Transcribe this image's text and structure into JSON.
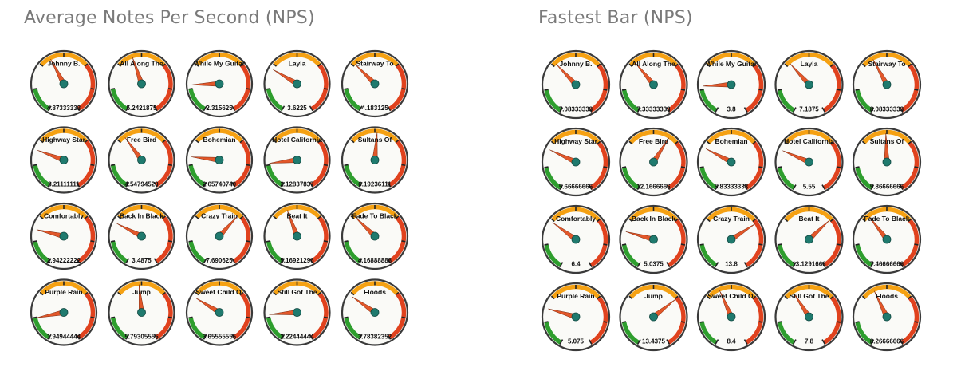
{
  "colors": {
    "green": "#2e9e2e",
    "orange": "#f5a113",
    "red": "#e0421e",
    "needle": "#e2572a",
    "hub": "#1f7a6e",
    "face": "#fafaf7",
    "rim": "#3a3a3a"
  },
  "panels": [
    {
      "title": "Average Notes Per Second (NPS)",
      "gauges": [
        {
          "label": "Johnny B.",
          "value": "4.87333333"
        },
        {
          "label": "All Along The",
          "value": "5.2421875"
        },
        {
          "label": "While My Guitar",
          "value": "2.315625"
        },
        {
          "label": "Layla",
          "value": "3.6225"
        },
        {
          "label": "Stairway To",
          "value": "4.183125"
        },
        {
          "label": "Highway Star",
          "value": "3.21111111"
        },
        {
          "label": "Free Bird",
          "value": "4.54794520"
        },
        {
          "label": "Bohemian",
          "value": "2.65740740"
        },
        {
          "label": "Hotel California",
          "value": "2.12837837"
        },
        {
          "label": "Sultans Of",
          "value": "6.19236111"
        },
        {
          "label": "Comfortably",
          "value": "2.94222222"
        },
        {
          "label": "Back In Black",
          "value": "3.4875"
        },
        {
          "label": "Crazy Train",
          "value": "7.690625"
        },
        {
          "label": "Beat It",
          "value": "5.16921296"
        },
        {
          "label": "Fade To Black",
          "value": "4.16888888"
        },
        {
          "label": "Purple Rain",
          "value": "1.94944444"
        },
        {
          "label": "Jump",
          "value": "5.79305555"
        },
        {
          "label": "Sweet Child O'",
          "value": "3.65555555"
        },
        {
          "label": "Still Got The",
          "value": "2.22444444"
        },
        {
          "label": "Floods",
          "value": "3.78382352"
        }
      ]
    },
    {
      "title": "Fastest Bar (NPS)",
      "gauges": [
        {
          "label": "Johnny B.",
          "value": "7.08333333"
        },
        {
          "label": "All Along The",
          "value": "7.33333333"
        },
        {
          "label": "While My Guitar",
          "value": "3.8"
        },
        {
          "label": "Layla",
          "value": "7.1875"
        },
        {
          "label": "Stairway To",
          "value": "8.08333333"
        },
        {
          "label": "Highway Star",
          "value": "5.66666666"
        },
        {
          "label": "Free Bird",
          "value": "12.1666666"
        },
        {
          "label": "Bohemian",
          "value": "5.83333333"
        },
        {
          "label": "Hotel California",
          "value": "5.55"
        },
        {
          "label": "Sultans Of",
          "value": "9.86666666"
        },
        {
          "label": "Comfortably",
          "value": "6.4"
        },
        {
          "label": "Back In Black",
          "value": "5.0375"
        },
        {
          "label": "Crazy Train",
          "value": "13.8"
        },
        {
          "label": "Beat It",
          "value": "13.1291666"
        },
        {
          "label": "Fade To Black",
          "value": "7.46666666"
        },
        {
          "label": "Purple Rain",
          "value": "5.075"
        },
        {
          "label": "Jump",
          "value": "13.4375"
        },
        {
          "label": "Sweet Child O'",
          "value": "8.4"
        },
        {
          "label": "Still Got The",
          "value": "7.8"
        },
        {
          "label": "Floods",
          "value": "8.26666666"
        }
      ]
    }
  ],
  "chart_data": [
    {
      "type": "gauge",
      "title": "Average Notes Per Second (NPS)",
      "gauge_min": 0,
      "gauge_max": 12,
      "bands": [
        {
          "color": "green",
          "from": 0,
          "to": 2
        },
        {
          "color": "orange",
          "from": 4,
          "to": 8
        },
        {
          "color": "red",
          "from": 8,
          "to": 12
        }
      ],
      "categories": [
        "Johnny B.",
        "All Along The",
        "While My Guitar",
        "Layla",
        "Stairway To",
        "Highway Star",
        "Free Bird",
        "Bohemian",
        "Hotel California",
        "Sultans Of",
        "Comfortably",
        "Back In Black",
        "Crazy Train",
        "Beat It",
        "Fade To Black",
        "Purple Rain",
        "Jump",
        "Sweet Child O'",
        "Still Got The",
        "Floods"
      ],
      "values": [
        4.87333333,
        5.2421875,
        2.315625,
        3.6225,
        4.183125,
        3.21111111,
        4.5479452,
        2.6574074,
        2.12837837,
        6.19236111,
        2.94222222,
        3.4875,
        7.690625,
        5.16921296,
        4.16888888,
        1.94944444,
        5.79305555,
        3.65555555,
        2.22444444,
        3.78382352
      ]
    },
    {
      "type": "gauge",
      "title": "Fastest Bar (NPS)",
      "gauge_min": 0,
      "gauge_max": 20,
      "bands": [
        {
          "color": "green",
          "from": 0,
          "to": 3.3
        },
        {
          "color": "orange",
          "from": 6.7,
          "to": 13.3
        },
        {
          "color": "red",
          "from": 13.3,
          "to": 20
        }
      ],
      "categories": [
        "Johnny B.",
        "All Along The",
        "While My Guitar",
        "Layla",
        "Stairway To",
        "Highway Star",
        "Free Bird",
        "Bohemian",
        "Hotel California",
        "Sultans Of",
        "Comfortably",
        "Back In Black",
        "Crazy Train",
        "Beat It",
        "Fade To Black",
        "Purple Rain",
        "Jump",
        "Sweet Child O'",
        "Still Got The",
        "Floods"
      ],
      "values": [
        7.08333333,
        7.33333333,
        3.8,
        7.1875,
        8.08333333,
        5.66666666,
        12.1666666,
        5.83333333,
        5.55,
        9.86666666,
        6.4,
        5.0375,
        13.8,
        13.1291666,
        7.46666666,
        5.075,
        13.4375,
        8.4,
        7.8,
        8.26666666
      ]
    }
  ]
}
